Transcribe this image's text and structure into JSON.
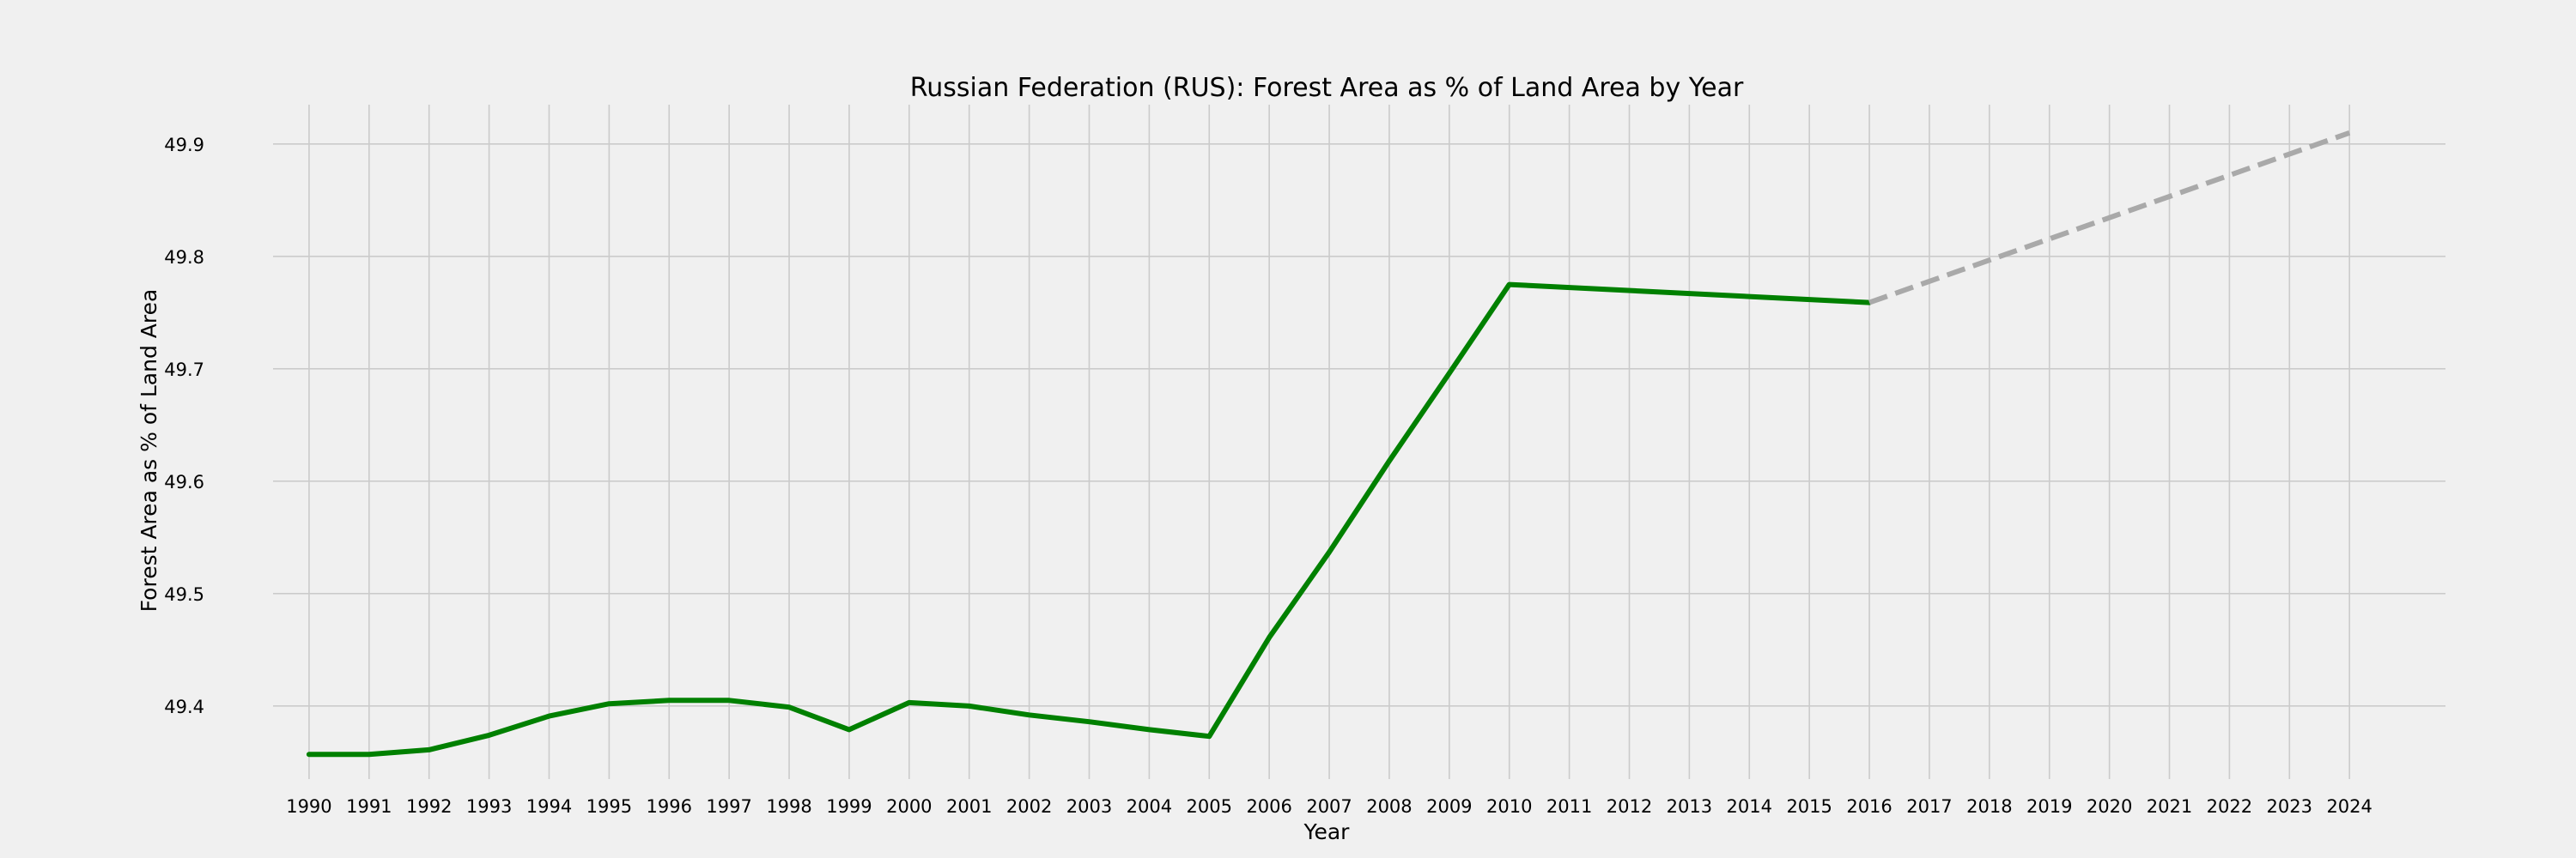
{
  "chart_data": {
    "type": "line",
    "title": "Russian Federation (RUS): Forest Area as % of Land Area by Year",
    "xlabel": "Year",
    "ylabel": "Forest Area as % of Land Area",
    "x": [
      1990,
      1991,
      1992,
      1993,
      1994,
      1995,
      1996,
      1997,
      1998,
      1999,
      2000,
      2001,
      2002,
      2003,
      2004,
      2005,
      2006,
      2007,
      2008,
      2009,
      2010,
      2011,
      2012,
      2013,
      2014,
      2015,
      2016,
      2017,
      2018,
      2019,
      2020,
      2021,
      2022,
      2023,
      2024
    ],
    "xticks": [
      "1990",
      "1991",
      "1992",
      "1993",
      "1994",
      "1995",
      "1996",
      "1997",
      "1998",
      "1999",
      "2000",
      "2001",
      "2002",
      "2003",
      "2004",
      "2005",
      "2006",
      "2007",
      "2008",
      "2009",
      "2010",
      "2011",
      "2012",
      "2013",
      "2014",
      "2015",
      "2016",
      "2017",
      "2018",
      "2019",
      "2020",
      "2021",
      "2022",
      "2023",
      "2024"
    ],
    "yticks": [
      "49.4",
      "49.5",
      "49.6",
      "49.7",
      "49.8",
      "49.9"
    ],
    "ylim": [
      49.335,
      49.935
    ],
    "xlim": [
      1989.4,
      2025.6
    ],
    "grid": true,
    "series": [
      {
        "style": "solid",
        "color": "#008000",
        "x": [
          1990,
          1991,
          1992,
          1993,
          1994,
          1995,
          1996,
          1997,
          1998,
          1999,
          2000,
          2001,
          2002,
          2003,
          2004,
          2005,
          2006,
          2007,
          2008,
          2009,
          2010,
          2016
        ],
        "values": [
          49.357,
          49.357,
          49.361,
          49.374,
          49.391,
          49.402,
          49.405,
          49.405,
          49.399,
          49.379,
          49.403,
          49.4,
          49.392,
          49.386,
          49.379,
          49.373,
          49.461,
          49.537,
          49.618,
          49.696,
          49.775,
          49.759
        ]
      },
      {
        "style": "dashed",
        "color": "#a9a9a9",
        "x": [
          2016,
          2024
        ],
        "values": [
          49.759,
          49.91
        ]
      }
    ]
  }
}
